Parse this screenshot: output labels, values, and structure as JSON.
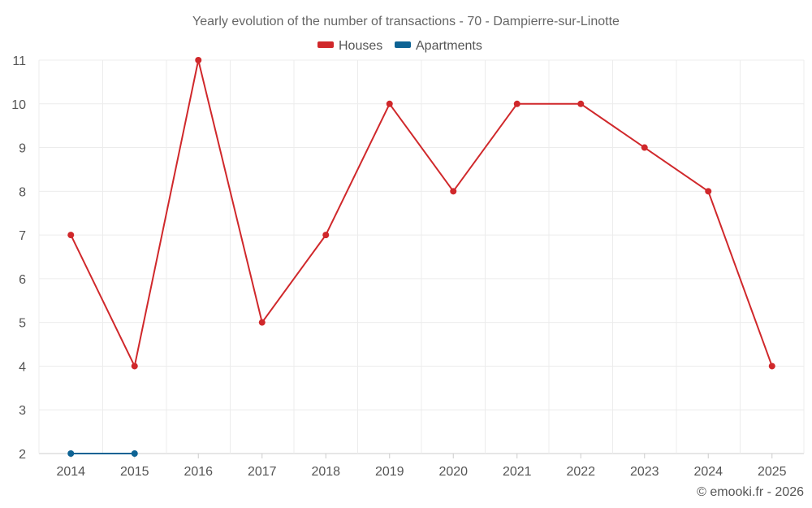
{
  "chart_data": {
    "type": "line",
    "title": "Yearly evolution of the number of transactions - 70 - Dampierre-sur-Linotte",
    "x": [
      "2014",
      "2015",
      "2016",
      "2017",
      "2018",
      "2019",
      "2020",
      "2021",
      "2022",
      "2023",
      "2024",
      "2025"
    ],
    "ylim": [
      2,
      11
    ],
    "yticks": [
      2,
      3,
      4,
      5,
      6,
      7,
      8,
      9,
      10,
      11
    ],
    "grid": true,
    "legend_position": "top-center",
    "series": [
      {
        "name": "Houses",
        "color": "#d0282b",
        "values": [
          7,
          4,
          11,
          5,
          7,
          10,
          8,
          10,
          10,
          9,
          8,
          4
        ]
      },
      {
        "name": "Apartments",
        "color": "#0e6394",
        "values": [
          2,
          2,
          null,
          null,
          null,
          null,
          null,
          null,
          null,
          null,
          null,
          null
        ]
      }
    ]
  },
  "credit": "© emooki.fr - 2026"
}
